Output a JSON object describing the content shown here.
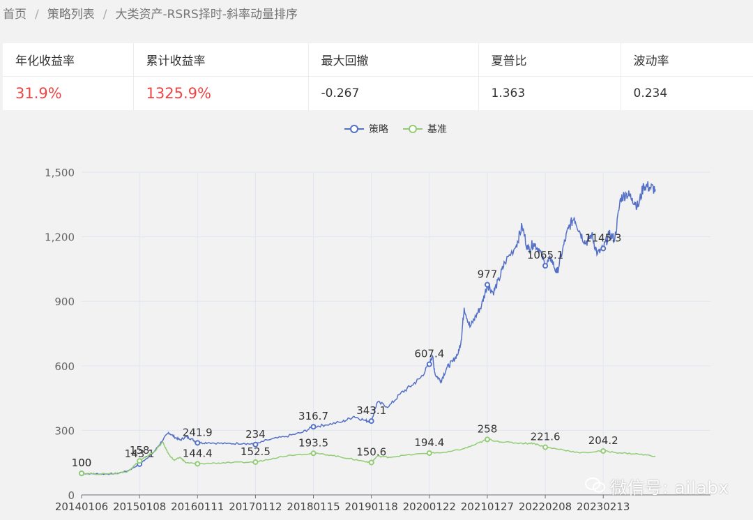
{
  "breadcrumb": {
    "home": "首页",
    "list": "策略列表",
    "current": "大类资产-RSRS择时-斜率动量排序",
    "sep": "/"
  },
  "metrics": {
    "headers": [
      "年化收益率",
      "累计收益率",
      "最大回撤",
      "夏普比",
      "波动率"
    ],
    "values": [
      "31.9%",
      "1325.9%",
      "-0.267",
      "1.363",
      "0.234"
    ],
    "highlight_color": "#ee4444"
  },
  "watermark": {
    "text": "微信号: ailabx"
  },
  "chart_data": {
    "type": "line",
    "title": "",
    "xlabel": "",
    "ylabel": "",
    "ylim": [
      0,
      1500
    ],
    "yticks": [
      "0",
      "300",
      "600",
      "900",
      "1,200",
      "1,500"
    ],
    "grid": true,
    "legend": "top-center",
    "categories": [
      "20140106",
      "20150108",
      "20160111",
      "20170112",
      "20180115",
      "20190118",
      "20200122",
      "20210127",
      "20220208",
      "20230213"
    ],
    "series": [
      {
        "name": "策略",
        "color": "#5470c6",
        "marked_values": [
          100,
          143.1,
          241.9,
          234,
          316.7,
          343.1,
          607.4,
          977,
          1065.1,
          1145.3
        ],
        "path": [
          [
            0,
            100
          ],
          [
            0.2,
            98
          ],
          [
            0.4,
            97
          ],
          [
            0.6,
            99
          ],
          [
            0.8,
            112
          ],
          [
            1,
            143.1
          ],
          [
            1.1,
            165
          ],
          [
            1.25,
            200
          ],
          [
            1.4,
            255
          ],
          [
            1.5,
            290
          ],
          [
            1.6,
            270
          ],
          [
            1.7,
            255
          ],
          [
            1.8,
            270
          ],
          [
            1.9,
            260
          ],
          [
            2,
            241.9
          ],
          [
            2.2,
            243
          ],
          [
            2.5,
            238
          ],
          [
            2.8,
            240
          ],
          [
            3,
            234
          ],
          [
            3.2,
            255
          ],
          [
            3.5,
            270
          ],
          [
            3.8,
            290
          ],
          [
            4,
            316.7
          ],
          [
            4.2,
            325
          ],
          [
            4.5,
            340
          ],
          [
            4.7,
            365
          ],
          [
            4.9,
            345
          ],
          [
            5,
            343.1
          ],
          [
            5.1,
            430
          ],
          [
            5.3,
            410
          ],
          [
            5.5,
            470
          ],
          [
            5.7,
            510
          ],
          [
            5.85,
            545
          ],
          [
            6,
            607.4
          ],
          [
            6.05,
            650
          ],
          [
            6.1,
            560
          ],
          [
            6.2,
            530
          ],
          [
            6.3,
            590
          ],
          [
            6.4,
            620
          ],
          [
            6.5,
            660
          ],
          [
            6.55,
            720
          ],
          [
            6.6,
            870
          ],
          [
            6.7,
            780
          ],
          [
            6.8,
            830
          ],
          [
            6.9,
            880
          ],
          [
            7,
            977
          ],
          [
            7.1,
            940
          ],
          [
            7.2,
            1000
          ],
          [
            7.3,
            1080
          ],
          [
            7.5,
            1160
          ],
          [
            7.6,
            1250
          ],
          [
            7.7,
            1140
          ],
          [
            7.8,
            1170
          ],
          [
            7.9,
            1140
          ],
          [
            8,
            1065.1
          ],
          [
            8.1,
            1100
          ],
          [
            8.2,
            1030
          ],
          [
            8.3,
            1140
          ],
          [
            8.4,
            1240
          ],
          [
            8.5,
            1290
          ],
          [
            8.6,
            1220
          ],
          [
            8.7,
            1170
          ],
          [
            8.8,
            1210
          ],
          [
            8.9,
            1120
          ],
          [
            9,
            1145.3
          ],
          [
            9.1,
            1210
          ],
          [
            9.2,
            1190
          ],
          [
            9.3,
            1380
          ],
          [
            9.4,
            1400
          ],
          [
            9.5,
            1380
          ],
          [
            9.6,
            1340
          ],
          [
            9.7,
            1440
          ],
          [
            9.8,
            1430
          ],
          [
            9.9,
            1420
          ]
        ]
      },
      {
        "name": "基准",
        "color": "#91cc75",
        "marked_values": [
          100,
          158,
          144.4,
          152.5,
          193.5,
          150.6,
          194.4,
          258,
          221.6,
          204.2
        ],
        "path": [
          [
            0,
            100
          ],
          [
            0.3,
            97
          ],
          [
            0.6,
            99
          ],
          [
            0.8,
            110
          ],
          [
            1,
            158
          ],
          [
            1.1,
            175
          ],
          [
            1.25,
            200
          ],
          [
            1.4,
            245
          ],
          [
            1.5,
            190
          ],
          [
            1.6,
            160
          ],
          [
            1.7,
            175
          ],
          [
            1.8,
            150
          ],
          [
            2,
            144.4
          ],
          [
            2.3,
            148
          ],
          [
            2.6,
            150
          ],
          [
            3,
            152.5
          ],
          [
            3.3,
            170
          ],
          [
            3.6,
            185
          ],
          [
            4,
            193.5
          ],
          [
            4.3,
            185
          ],
          [
            4.6,
            170
          ],
          [
            4.8,
            160
          ],
          [
            5,
            150.6
          ],
          [
            5.1,
            180
          ],
          [
            5.3,
            175
          ],
          [
            5.6,
            185
          ],
          [
            6,
            194.4
          ],
          [
            6.3,
            198
          ],
          [
            6.6,
            215
          ],
          [
            6.8,
            235
          ],
          [
            7,
            258
          ],
          [
            7.3,
            245
          ],
          [
            7.6,
            240
          ],
          [
            7.8,
            240
          ],
          [
            8,
            221.6
          ],
          [
            8.3,
            210
          ],
          [
            8.6,
            195
          ],
          [
            9,
            204.2
          ],
          [
            9.3,
            195
          ],
          [
            9.6,
            190
          ],
          [
            9.9,
            180
          ]
        ]
      }
    ]
  }
}
